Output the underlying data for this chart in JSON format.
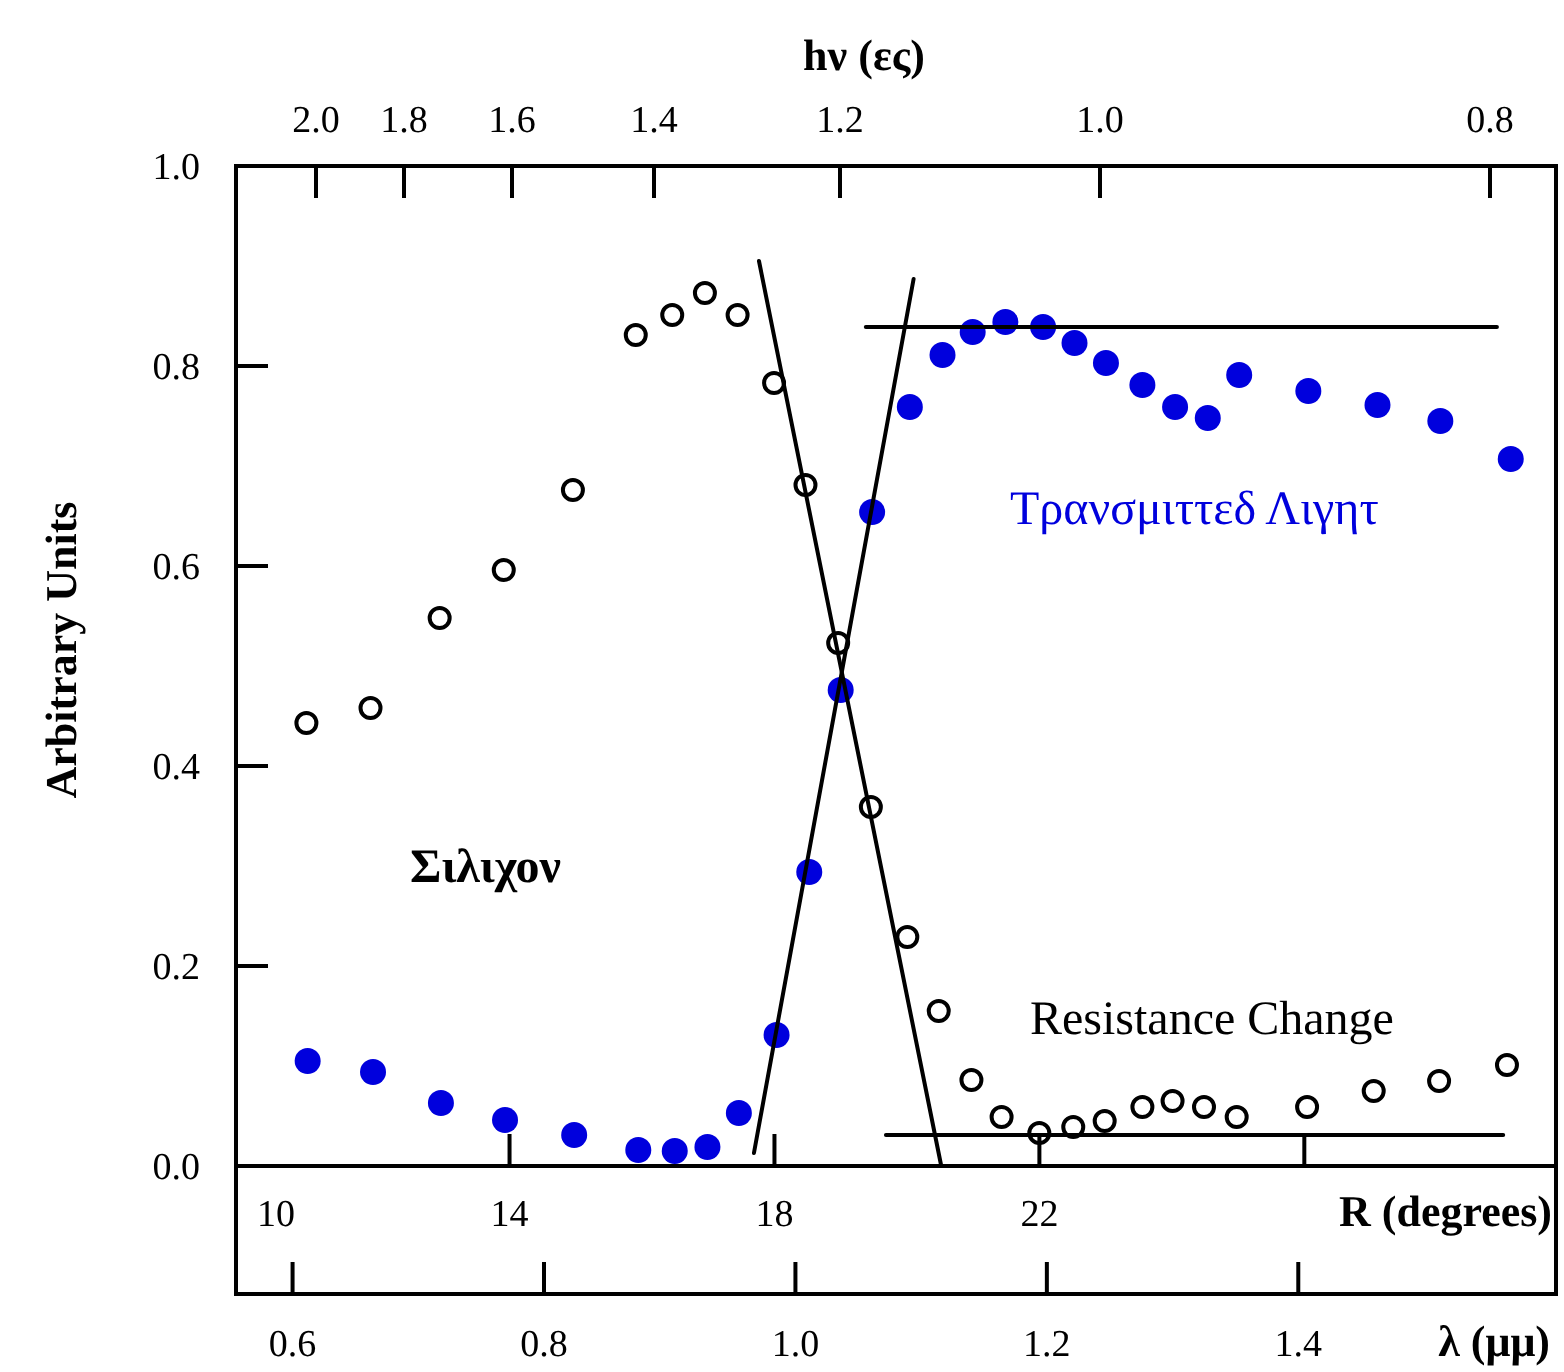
{
  "chart_data": {
    "type": "scatter",
    "xlabel": "λ (μμ)",
    "ylabel": "Arbitrary Units",
    "x2label": "R (degrees)",
    "xlim": [
      0.555,
      1.605
    ],
    "xticks": [
      {
        "value": 0.6,
        "label": "0.6"
      },
      {
        "value": 0.8,
        "label": "0.8"
      },
      {
        "value": 1.0,
        "label": "1.0"
      },
      {
        "value": 1.2,
        "label": "1.2"
      },
      {
        "value": 1.4,
        "label": "1.4"
      }
    ],
    "x2lim": [
      9.87,
      29.8
    ],
    "x2ticks": [
      10,
      14,
      18,
      22,
      {
        "value": 26,
        "label": null
      }
    ],
    "ylim": [
      -0.128,
      1.0
    ],
    "yticks": [
      {
        "value": 0,
        "label": "0.0"
      },
      0.2,
      0.4,
      0.6,
      0.8,
      {
        "value": 1.0,
        "label": "1.0"
      }
    ],
    "grid": false,
    "annotations": [
      "Σιλιχον",
      "hν (ες)",
      "2.0",
      "1.8",
      "1.6",
      "1.4",
      "1.2",
      "1.0",
      "0.8"
    ],
    "series": [
      {
        "name": "Resistance Change",
        "color": "#000000",
        "marker": "open circle",
        "x": [
          0.611,
          0.662,
          0.717,
          0.768,
          0.823,
          0.873,
          0.902,
          0.928,
          0.954,
          0.983,
          1.008,
          1.034,
          1.06,
          1.089,
          1.114,
          1.14,
          1.164,
          1.194,
          1.221,
          1.246,
          1.276,
          1.3,
          1.325,
          1.351,
          1.407,
          1.46,
          1.512,
          1.566
        ],
        "values": [
          0.443,
          0.458,
          0.548,
          0.596,
          0.676,
          0.831,
          0.851,
          0.873,
          0.851,
          0.783,
          0.681,
          0.523,
          0.359,
          0.229,
          0.155,
          0.086,
          0.049,
          0.033,
          0.039,
          0.045,
          0.059,
          0.065,
          0.059,
          0.049,
          0.059,
          0.075,
          0.085,
          0.101
        ]
      },
      {
        "name": "Τρανσμιττεδ Λιγητ",
        "color": "#0000dd",
        "marker": "circle",
        "x": [
          0.612,
          0.664,
          0.718,
          0.769,
          0.824,
          0.875,
          0.904,
          0.93,
          0.955,
          0.985,
          1.011,
          1.036,
          1.061,
          1.091,
          1.117,
          1.141,
          1.167,
          1.197,
          1.222,
          1.247,
          1.276,
          1.302,
          1.328,
          1.353,
          1.408,
          1.463,
          1.513,
          1.569
        ],
        "values": [
          0.105,
          0.094,
          0.063,
          0.046,
          0.031,
          0.016,
          0.015,
          0.019,
          0.053,
          0.131,
          0.294,
          0.476,
          0.654,
          0.759,
          0.811,
          0.834,
          0.844,
          0.839,
          0.823,
          0.803,
          0.781,
          0.759,
          0.748,
          0.791,
          0.775,
          0.761,
          0.745,
          0.707
        ]
      },
      {
        "type": "line",
        "color": "#000000",
        "marker": "none",
        "x": [
          0.971,
          1.116
        ],
        "values": [
          0.905,
          0.0
        ]
      },
      {
        "type": "line",
        "color": "#000000",
        "marker": "none",
        "x": [
          0.967,
          1.094
        ],
        "values": [
          0.013,
          0.887
        ]
      },
      {
        "type": "line",
        "color": "#000000",
        "marker": "none",
        "x": [
          1.056,
          1.558
        ],
        "values": [
          0.839,
          0.839
        ]
      },
      {
        "type": "line",
        "color": "#000000",
        "marker": "none",
        "x": [
          1.072,
          1.563
        ],
        "values": [
          0.031,
          0.031
        ]
      }
    ]
  }
}
